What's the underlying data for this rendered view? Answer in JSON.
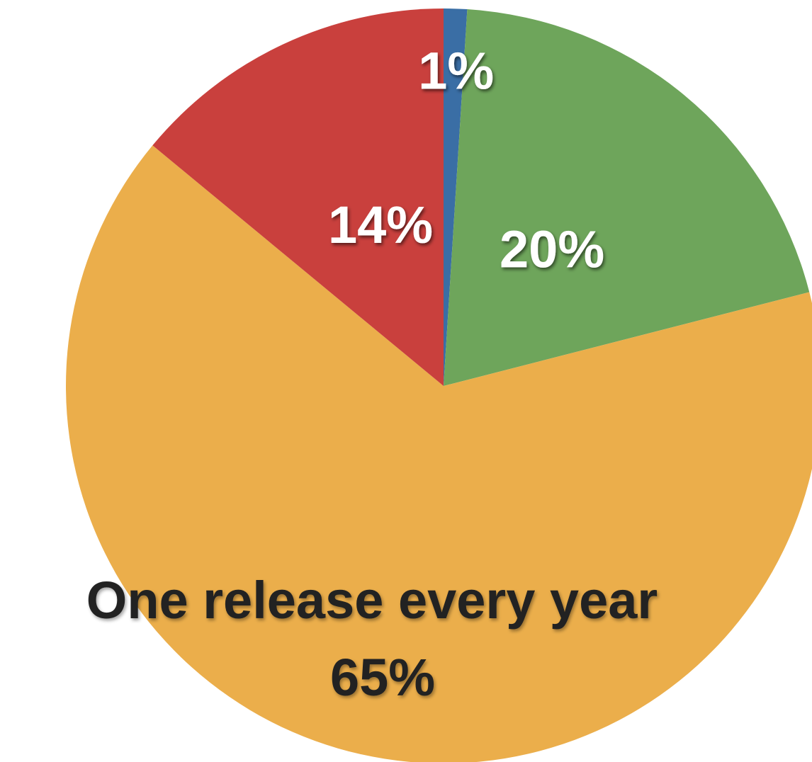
{
  "chart_data": {
    "type": "pie",
    "slices": [
      {
        "label": "",
        "value": 1,
        "display": "1%",
        "color": "#3a6ea5"
      },
      {
        "label": "",
        "value": 20,
        "display": "20%",
        "color": "#6ea55b"
      },
      {
        "label": "One release every year",
        "value": 65,
        "display": "65%",
        "color": "#ebae4b"
      },
      {
        "label": "",
        "value": 14,
        "display": "14%",
        "color": "#c9403d"
      }
    ],
    "start": "top",
    "direction": "clockwise",
    "legend": "none"
  }
}
